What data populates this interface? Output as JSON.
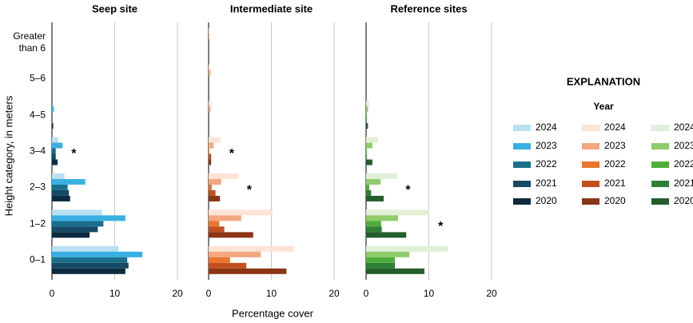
{
  "y_label": "Height category, in meters",
  "x_label": "Percentage cover",
  "legend_title": "EXPLANATION",
  "legend_subtitle": "Year",
  "chart_data": [
    {
      "type": "bar",
      "orientation": "horizontal",
      "title": "Seep site",
      "categories": [
        "Greater than 6",
        "5–6",
        "4–5",
        "3–4",
        "2–3",
        "1–2",
        "0–1"
      ],
      "xlim": [
        0,
        20
      ],
      "xticks": [
        0,
        10,
        20
      ],
      "grid": true,
      "annotations": [
        {
          "text": "*",
          "category": "3–4"
        }
      ],
      "series": [
        {
          "name": "2024",
          "color": "#b9e0f3",
          "values": [
            0,
            0,
            0,
            1.0,
            2.0,
            8.0,
            10.6
          ]
        },
        {
          "name": "2023",
          "color": "#3ab0e2",
          "values": [
            0,
            0,
            0.3,
            1.7,
            5.3,
            11.7,
            14.4
          ]
        },
        {
          "name": "2022",
          "color": "#1a6f8c",
          "values": [
            0,
            0,
            0,
            0.6,
            2.5,
            8.2,
            12.0
          ]
        },
        {
          "name": "2021",
          "color": "#154a66",
          "values": [
            0,
            0,
            0,
            0.6,
            2.7,
            7.3,
            12.2
          ]
        },
        {
          "name": "2020",
          "color": "#0d2b40",
          "values": [
            0,
            0,
            0.2,
            0.9,
            2.9,
            6.0,
            11.7
          ]
        }
      ]
    },
    {
      "type": "bar",
      "orientation": "horizontal",
      "title": "Intermediate site",
      "categories": [
        "Greater than 6",
        "5–6",
        "4–5",
        "3–4",
        "2–3",
        "1–2",
        "0–1"
      ],
      "xlim": [
        0,
        20
      ],
      "xticks": [
        0,
        10,
        20
      ],
      "grid": true,
      "annotations": [
        {
          "text": "*",
          "category": "3–4"
        },
        {
          "text": "*",
          "category": "2–3"
        }
      ],
      "series": [
        {
          "name": "2024",
          "color": "#fde3d4",
          "values": [
            0.2,
            0.2,
            0.4,
            1.9,
            4.7,
            10.2,
            13.6
          ]
        },
        {
          "name": "2023",
          "color": "#f2a77f",
          "values": [
            0.1,
            0.3,
            0.3,
            0.8,
            2.0,
            5.2,
            8.3
          ]
        },
        {
          "name": "2022",
          "color": "#e8762d",
          "values": [
            0,
            0,
            0,
            0.1,
            0.5,
            1.7,
            3.4
          ]
        },
        {
          "name": "2021",
          "color": "#c24f1e",
          "values": [
            0,
            0,
            0,
            0.4,
            1.1,
            2.5,
            6.0
          ]
        },
        {
          "name": "2020",
          "color": "#8a3515",
          "values": [
            0,
            0,
            0.1,
            0.4,
            1.8,
            7.1,
            12.4
          ]
        }
      ]
    },
    {
      "type": "bar",
      "orientation": "horizontal",
      "title": "Reference sites",
      "categories": [
        "Greater than 6",
        "5–6",
        "4–5",
        "3–4",
        "2–3",
        "1–2",
        "0–1"
      ],
      "xlim": [
        0,
        20
      ],
      "xticks": [
        0,
        10,
        20
      ],
      "grid": true,
      "annotations": [
        {
          "text": "*",
          "category": "2–3"
        },
        {
          "text": "*",
          "category": "1–2"
        }
      ],
      "series": [
        {
          "name": "2024",
          "color": "#e0efd6",
          "values": [
            0,
            0,
            0.5,
            1.9,
            4.9,
            10.1,
            13.0
          ]
        },
        {
          "name": "2023",
          "color": "#8fcc6b",
          "values": [
            0,
            0,
            0.3,
            1.0,
            2.3,
            5.1,
            6.9
          ]
        },
        {
          "name": "2022",
          "color": "#4fae3b",
          "values": [
            0,
            0,
            0.1,
            0.1,
            0.5,
            2.4,
            4.6
          ]
        },
        {
          "name": "2021",
          "color": "#2f7f34",
          "values": [
            0,
            0,
            0,
            0.1,
            0.8,
            2.5,
            4.6
          ]
        },
        {
          "name": "2020",
          "color": "#235e2b",
          "values": [
            0,
            0,
            0.3,
            1.0,
            2.8,
            6.4,
            9.3
          ]
        }
      ]
    }
  ]
}
